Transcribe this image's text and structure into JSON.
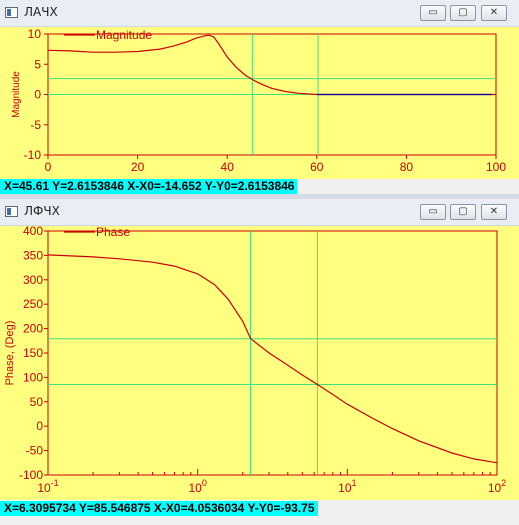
{
  "windows": [
    {
      "title": "ЛАЧХ",
      "legend": "Magnitude",
      "ylabel": "Magnitude",
      "status": "X=45.61  Y=2.6153846 X-X0=-14.652 Y-Y0=2.6153846",
      "buttons": {
        "min": "▭",
        "max": "▢",
        "close": "✕"
      }
    },
    {
      "title": "ЛФЧХ",
      "legend": "Phase",
      "ylabel": "Phase, (Deg)",
      "status": "X=6.3095734  Y=85.546875 X-X0=4.0536034 Y-Y0=-93.75",
      "buttons": {
        "min": "▭",
        "max": "▢",
        "close": "✕"
      }
    }
  ],
  "colors": {
    "plot_bg": "#ffff80",
    "curve": "#cc0000",
    "axes": "#cc0000",
    "cursor": "#40e080",
    "status_bg": "#00ffff",
    "tail": "#0000aa"
  },
  "chart_data": [
    {
      "type": "line",
      "title": "",
      "xlabel": "",
      "ylabel": "Magnitude",
      "xlim": [
        0,
        100
      ],
      "ylim": [
        -10,
        10
      ],
      "xticks": [
        "0",
        "20",
        "40",
        "60",
        "80",
        "100"
      ],
      "yticks": [
        "10",
        "5",
        "0",
        "-5",
        "-10"
      ],
      "grid": false,
      "legend": "top-left",
      "series": [
        {
          "name": "Magnitude",
          "x": [
            0,
            5,
            10,
            15,
            20,
            25,
            28,
            31,
            33,
            35,
            36,
            37,
            38,
            40,
            42,
            44,
            46,
            48,
            50,
            53,
            56,
            60,
            65,
            70,
            80,
            90,
            100
          ],
          "y": [
            7.3,
            7.2,
            7.0,
            7.0,
            7.1,
            7.5,
            8.0,
            8.7,
            9.3,
            9.7,
            9.8,
            9.5,
            8.5,
            6.2,
            4.5,
            3.2,
            2.3,
            1.6,
            1.0,
            0.5,
            0.2,
            0.0,
            0.0,
            0.0,
            0.0,
            0.0,
            0.0
          ]
        }
      ],
      "cursors": {
        "x": [
          45.61,
          60.262
        ],
        "y": [
          2.6153846,
          0
        ]
      }
    },
    {
      "type": "line",
      "title": "",
      "xlabel": "",
      "ylabel": "Phase, (Deg)",
      "xscale": "log",
      "xlim": [
        0.1,
        100
      ],
      "ylim": [
        -100,
        400
      ],
      "yticks": [
        "400",
        "350",
        "300",
        "250",
        "200",
        "150",
        "100",
        "50",
        "0",
        "-50",
        "-100"
      ],
      "xticks": [
        "10-1",
        "100",
        "101",
        "102"
      ],
      "grid": false,
      "legend": "top-left",
      "series": [
        {
          "name": "Phase",
          "x": [
            0.1,
            0.2,
            0.3,
            0.5,
            0.7,
            1.0,
            1.3,
            1.6,
            2.0,
            2.26,
            3.0,
            4.0,
            5.0,
            6.31,
            8.0,
            10,
            15,
            20,
            30,
            50,
            70,
            100
          ],
          "y": [
            351,
            347,
            343,
            336,
            328,
            312,
            290,
            260,
            215,
            179,
            150,
            125,
            105,
            85.5,
            65,
            45,
            15,
            -5,
            -30,
            -55,
            -67,
            -75
          ]
        }
      ],
      "cursors": {
        "x": [
          2.25597,
          6.3095734
        ],
        "y": [
          179.296875,
          85.546875
        ]
      }
    }
  ]
}
